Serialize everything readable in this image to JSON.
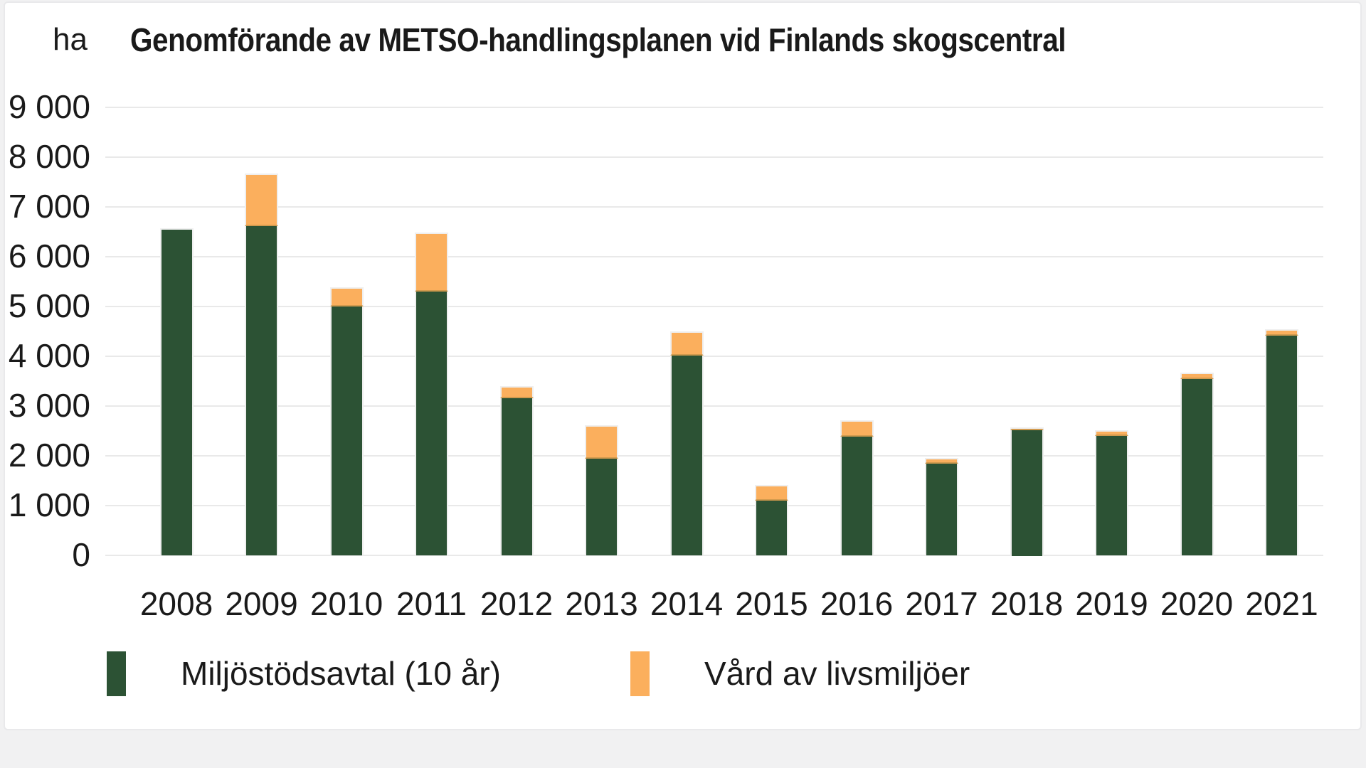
{
  "chart": {
    "unit_label": "ha",
    "title": "Genomförande av METSO-handlingsplanen vid Finlands skogscentral",
    "y_ticks": [
      "0",
      "1 000",
      "2 000",
      "3 000",
      "4 000",
      "5 000",
      "6 000",
      "7 000",
      "8 000",
      "9 000"
    ]
  },
  "chart_data": {
    "type": "bar",
    "stacked": true,
    "title": "Genomförande av METSO-handlingsplanen vid Finlands skogscentral",
    "ylabel": "ha",
    "xlabel": "",
    "ylim": [
      0,
      9000
    ],
    "y_tick_step": 1000,
    "grid": true,
    "legend_position": "bottom",
    "categories": [
      "2008",
      "2009",
      "2010",
      "2011",
      "2012",
      "2013",
      "2014",
      "2015",
      "2016",
      "2017",
      "2018",
      "2019",
      "2020",
      "2021"
    ],
    "series": [
      {
        "name": "Miljöstödsavtal (10 år)",
        "color": "#2C5234",
        "values": [
          6570,
          6610,
          5005,
          5300,
          3155,
          1945,
          4015,
          1100,
          2380,
          1845,
          2530,
          2400,
          3540,
          4410
        ]
      },
      {
        "name": "Vård av livsmiljöer",
        "color": "#FBAF5D",
        "values": [
          0,
          1055,
          380,
          1190,
          250,
          665,
          485,
          320,
          335,
          115,
          45,
          115,
          130,
          135
        ]
      }
    ],
    "totals": [
      6570,
      7665,
      5385,
      6490,
      3405,
      2610,
      4500,
      1420,
      2715,
      1960,
      2575,
      2515,
      3670,
      4545
    ]
  },
  "legend": {
    "items": [
      {
        "label": "Miljöstödsavtal (10 år)",
        "color": "#2C5234"
      },
      {
        "label": "Vård av livsmiljöer",
        "color": "#FBAF5D"
      }
    ]
  },
  "colors": {
    "bar_green": "#2C5234",
    "bar_orange": "#FBAF5D",
    "gridline": "#e9e9e9",
    "segment_divider": "#d29a4e",
    "text": "#1a1a1a",
    "card_background": "#ffffff",
    "page_background": "#f1f1f2"
  }
}
